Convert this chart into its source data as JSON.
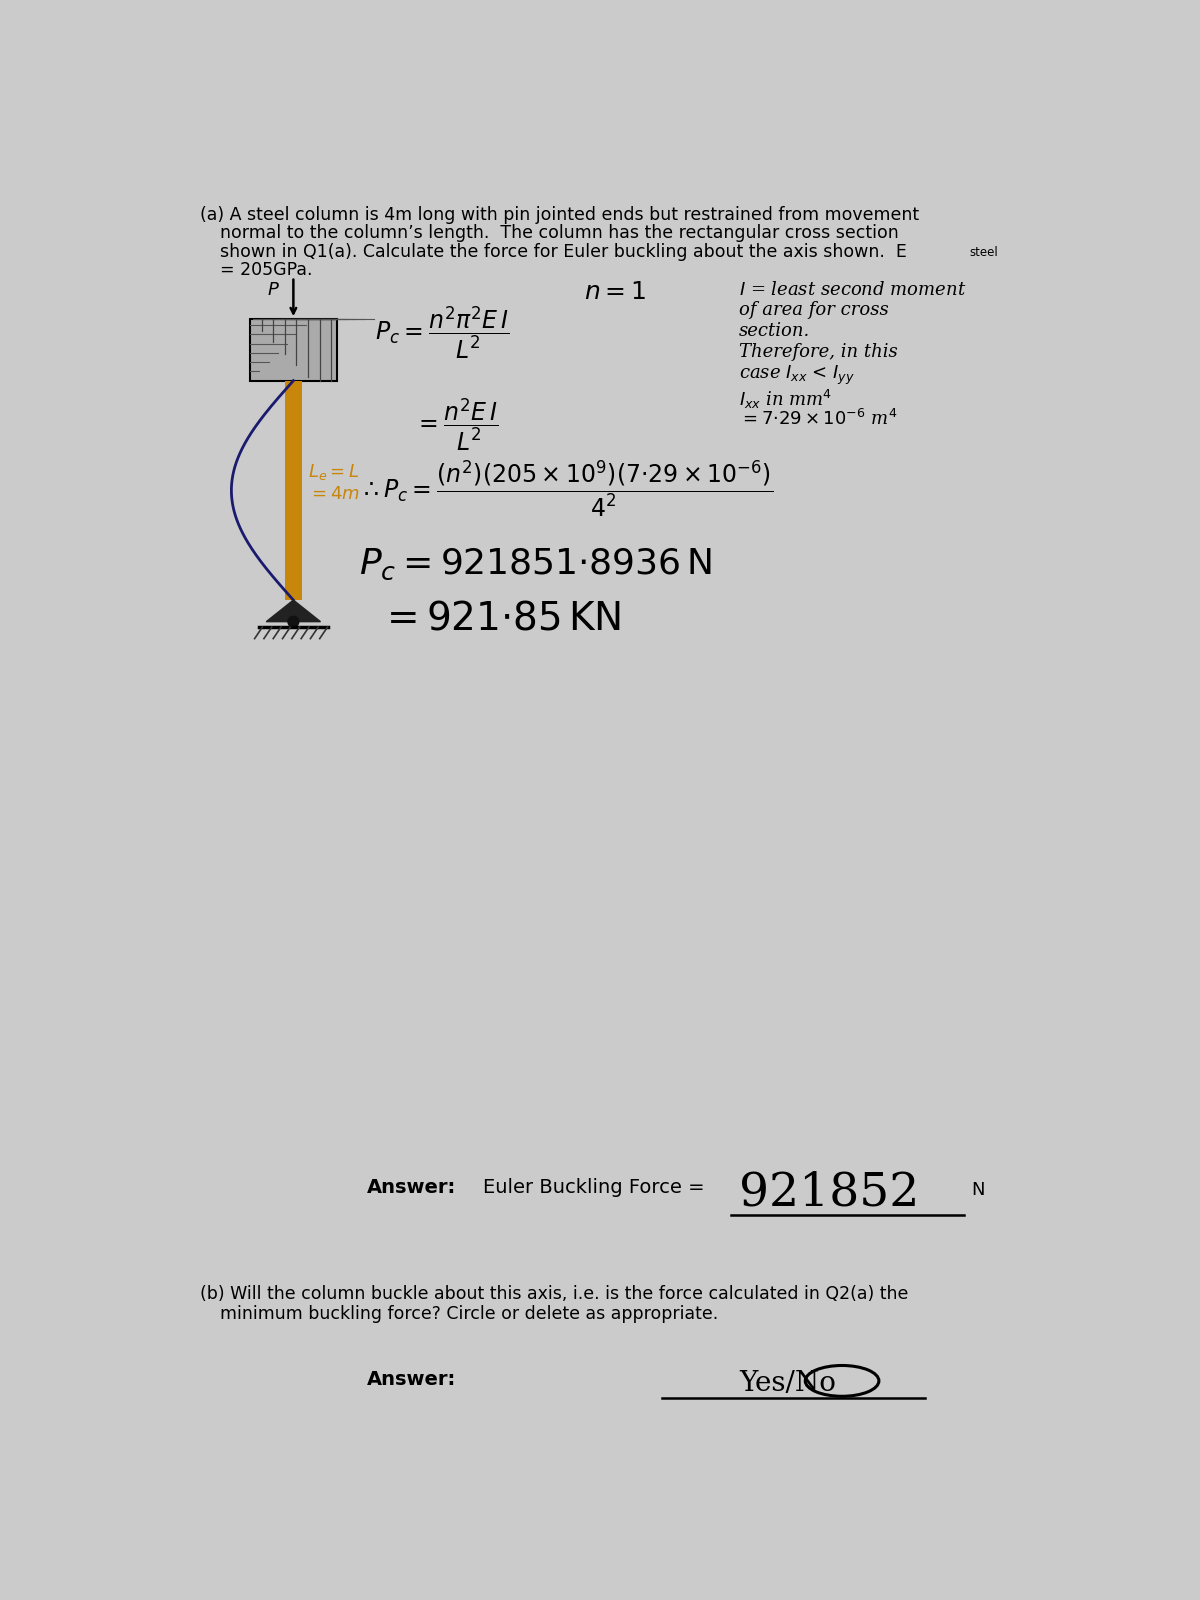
{
  "bg_color": "#cbcbcb",
  "col_color": "#c8860a",
  "hatch_color": "#333333",
  "blue_curve_color": "#1a1a6e",
  "title_fs": 12.5,
  "formula_fs": 17,
  "note_fs": 13,
  "result_fs": 26,
  "answer_fs": 14,
  "answer_value_fs": 34,
  "answer_b_value_fs": 20,
  "answer_label": "Answer:",
  "euler_label": "Euler Buckling Force =",
  "answer_value": "921852",
  "answer_unit": "N",
  "part_b_line1": "(b) Will the column buckle about this axis, i.e. is the force calculated in Q2(a) the",
  "part_b_line2": "    minimum buckling force? Circle or delete as appropriate.",
  "answer_b_label": "Answer:",
  "answer_b_value": "Yes/No"
}
